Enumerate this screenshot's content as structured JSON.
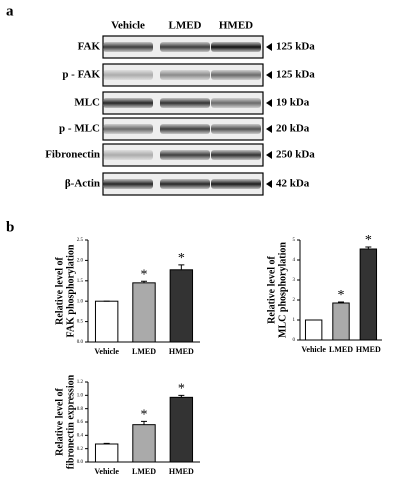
{
  "panel_labels": [
    "a",
    "b"
  ],
  "blot": {
    "columns": [
      "Vehicle",
      "LMED",
      "HMED"
    ],
    "rows": [
      {
        "label": "FAK",
        "size": "125 kDa"
      },
      {
        "label": "p - FAK",
        "size": "125 kDa"
      },
      {
        "label": "MLC",
        "size": "19 kDa"
      },
      {
        "label": "p - MLC",
        "size": "20 kDa"
      },
      {
        "label": "Fibronectin",
        "size": "250 kDa"
      },
      {
        "label": "β-Actin",
        "size": "42 kDa"
      }
    ]
  },
  "chart_data": [
    {
      "type": "bar",
      "ylabel": [
        "Relative level of",
        "FAK phosphorylation"
      ],
      "categories": [
        "Vehicle",
        "LMED",
        "HMED"
      ],
      "values": [
        1.0,
        1.45,
        1.77
      ],
      "errors": [
        0,
        0.04,
        0.12
      ],
      "colors": [
        "#ffffff",
        "#aaaaaa",
        "#333333"
      ],
      "annotations": [
        null,
        "*",
        "*"
      ],
      "ylim": [
        0,
        2.5
      ],
      "yticks": [
        {
          "value": 0,
          "label": "0.0"
        },
        0.5,
        {
          "value": 1,
          "label": "1.0"
        },
        1.5,
        {
          "value": 2,
          "label": "2.0"
        },
        2.5
      ]
    },
    {
      "type": "bar",
      "ylabel": [
        "Relative level of",
        "MLC phosphorylation"
      ],
      "categories": [
        "Vehicle",
        "LMED",
        "HMED"
      ],
      "values": [
        1.0,
        1.85,
        4.55
      ],
      "errors": [
        0,
        0.05,
        0.1
      ],
      "colors": [
        "#ffffff",
        "#aaaaaa",
        "#333333"
      ],
      "annotations": [
        null,
        "*",
        "*"
      ],
      "ylim": [
        0,
        5
      ],
      "yticks": [
        0,
        1,
        2,
        3,
        4,
        5
      ]
    },
    {
      "type": "bar",
      "ylabel": [
        "Relative level of",
        "fibronectin expression"
      ],
      "categories": [
        "Vehicle",
        "LMED",
        "HMED"
      ],
      "values": [
        0.27,
        0.56,
        0.97
      ],
      "errors": [
        0.01,
        0.05,
        0.03
      ],
      "colors": [
        "#ffffff",
        "#aaaaaa",
        "#333333"
      ],
      "annotations": [
        null,
        "*",
        "*"
      ],
      "ylim": [
        0,
        1.2
      ],
      "yticks": [
        {
          "value": 0,
          "label": "0.0"
        },
        0.2,
        0.4,
        0.6,
        0.8,
        {
          "value": 1,
          "label": "1.0"
        },
        1.2
      ]
    }
  ]
}
